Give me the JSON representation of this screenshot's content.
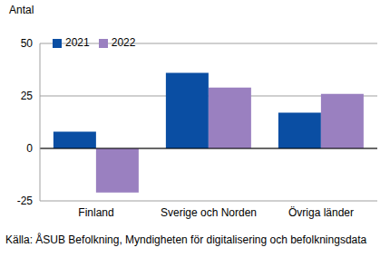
{
  "chart_data": {
    "type": "bar",
    "ylabel": "Antal",
    "source": "Källa: ÅSUB Befolkning, Myndigheten för digitalisering och befolkningsdata",
    "categories": [
      "Finland",
      "Sverige och Norden",
      "Övriga länder"
    ],
    "series": [
      {
        "name": "2021",
        "color": "#0a4ea3",
        "values": [
          8,
          36,
          17
        ]
      },
      {
        "name": "2022",
        "color": "#9a80c0",
        "values": [
          -21,
          29,
          26
        ]
      }
    ],
    "ylim": [
      -25,
      50
    ],
    "yticks": [
      -25,
      0,
      25,
      50
    ],
    "grid": true,
    "legend": "upper left"
  }
}
